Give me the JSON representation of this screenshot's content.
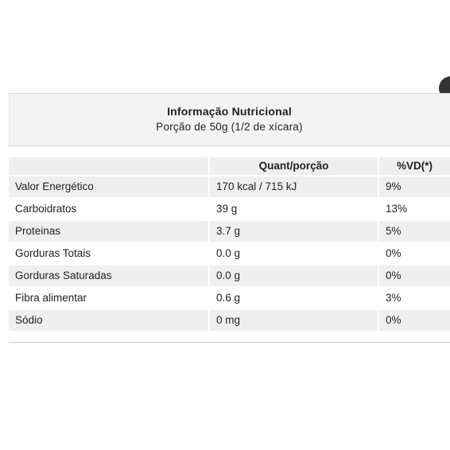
{
  "header": {
    "title": "Informação Nutricional",
    "subtitle": "Porção de 50g (1/2 de xícara)"
  },
  "table": {
    "header": [
      "Quant/porção",
      "%VD(*)"
    ],
    "rows": [
      [
        "Valor Energético",
        "170 kcal / 715 kJ",
        "9%"
      ],
      [
        "Carboidratos",
        "39 g",
        "13%"
      ],
      [
        "Proteinas",
        "3.7 g",
        "5%"
      ],
      [
        "Gorduras Totais",
        "0.0 g",
        "0%"
      ],
      [
        "Gorduras Saturadas",
        "0.0 g",
        "0%"
      ],
      [
        "Fibra alimentar",
        "0.6 g",
        "3%"
      ],
      [
        "Sódio",
        "0 mg",
        "0%"
      ]
    ]
  }
}
